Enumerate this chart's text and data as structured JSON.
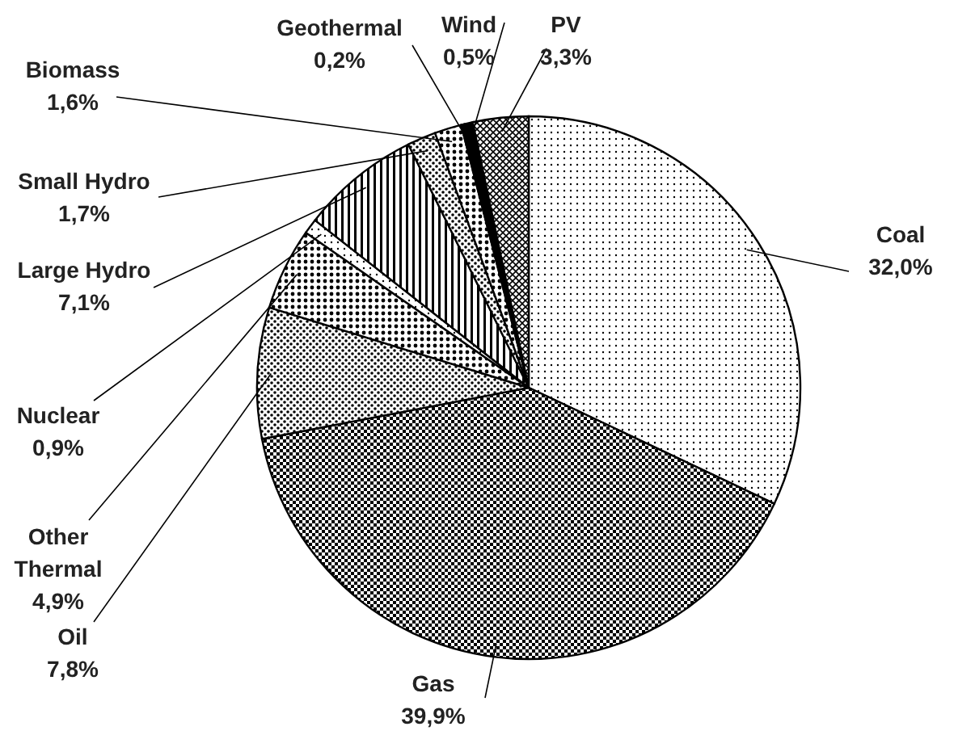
{
  "chart_data": {
    "type": "pie",
    "categories": [
      "Coal",
      "Gas",
      "Oil",
      "Other Thermal",
      "Nuclear",
      "Large Hydro",
      "Small Hydro",
      "Biomass",
      "Geothermal",
      "Wind",
      "PV"
    ],
    "values": [
      32.0,
      39.9,
      7.8,
      4.9,
      0.9,
      7.1,
      1.7,
      1.6,
      0.2,
      0.5,
      3.3
    ],
    "value_labels": [
      "32,0%",
      "39,9%",
      "7,8%",
      "4,9%",
      "0,9%",
      "7,1%",
      "1,7%",
      "1,6%",
      "0,2%",
      "0,5%",
      "3,3%"
    ],
    "colors": [
      "#000000",
      "#000000",
      "#000000",
      "#000000",
      "#000000",
      "#000000",
      "#000000",
      "#000000",
      "#000000",
      "#000000",
      "#000000"
    ]
  }
}
